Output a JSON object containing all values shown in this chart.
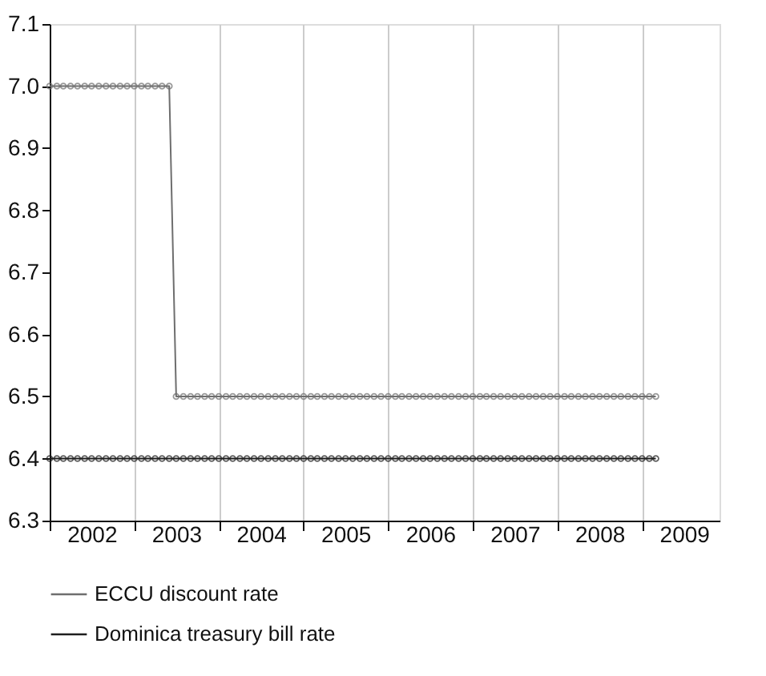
{
  "chart_data": {
    "type": "line",
    "x": [
      "2002-01",
      "2002-02",
      "2002-03",
      "2002-04",
      "2002-05",
      "2002-06",
      "2002-07",
      "2002-08",
      "2002-09",
      "2002-10",
      "2002-11",
      "2002-12",
      "2003-01",
      "2003-02",
      "2003-03",
      "2003-04",
      "2003-05",
      "2003-06",
      "2003-07",
      "2003-08",
      "2003-09",
      "2003-10",
      "2003-11",
      "2003-12",
      "2004-01",
      "2004-02",
      "2004-03",
      "2004-04",
      "2004-05",
      "2004-06",
      "2004-07",
      "2004-08",
      "2004-09",
      "2004-10",
      "2004-11",
      "2004-12",
      "2005-01",
      "2005-02",
      "2005-03",
      "2005-04",
      "2005-05",
      "2005-06",
      "2005-07",
      "2005-08",
      "2005-09",
      "2005-10",
      "2005-11",
      "2005-12",
      "2006-01",
      "2006-02",
      "2006-03",
      "2006-04",
      "2006-05",
      "2006-06",
      "2006-07",
      "2006-08",
      "2006-09",
      "2006-10",
      "2006-11",
      "2006-12",
      "2007-01",
      "2007-02",
      "2007-03",
      "2007-04",
      "2007-05",
      "2007-06",
      "2007-07",
      "2007-08",
      "2007-09",
      "2007-10",
      "2007-11",
      "2007-12",
      "2008-01",
      "2008-02",
      "2008-03",
      "2008-04",
      "2008-05",
      "2008-06",
      "2008-07",
      "2008-08",
      "2008-09",
      "2008-10",
      "2008-11",
      "2008-12",
      "2009-01",
      "2009-02",
      "2009-03"
    ],
    "series": [
      {
        "name": "ECCU discount rate",
        "color": "#6e6e6e",
        "values": [
          7.0,
          7.0,
          7.0,
          7.0,
          7.0,
          7.0,
          7.0,
          7.0,
          7.0,
          7.0,
          7.0,
          7.0,
          7.0,
          7.0,
          7.0,
          7.0,
          7.0,
          7.0,
          6.5,
          6.5,
          6.5,
          6.5,
          6.5,
          6.5,
          6.5,
          6.5,
          6.5,
          6.5,
          6.5,
          6.5,
          6.5,
          6.5,
          6.5,
          6.5,
          6.5,
          6.5,
          6.5,
          6.5,
          6.5,
          6.5,
          6.5,
          6.5,
          6.5,
          6.5,
          6.5,
          6.5,
          6.5,
          6.5,
          6.5,
          6.5,
          6.5,
          6.5,
          6.5,
          6.5,
          6.5,
          6.5,
          6.5,
          6.5,
          6.5,
          6.5,
          6.5,
          6.5,
          6.5,
          6.5,
          6.5,
          6.5,
          6.5,
          6.5,
          6.5,
          6.5,
          6.5,
          6.5,
          6.5,
          6.5,
          6.5,
          6.5,
          6.5,
          6.5,
          6.5,
          6.5,
          6.5,
          6.5,
          6.5,
          6.5,
          6.5,
          6.5,
          6.5
        ]
      },
      {
        "name": "Dominica treasury bill rate",
        "color": "#1e1e1e",
        "values": [
          6.4,
          6.4,
          6.4,
          6.4,
          6.4,
          6.4,
          6.4,
          6.4,
          6.4,
          6.4,
          6.4,
          6.4,
          6.4,
          6.4,
          6.4,
          6.4,
          6.4,
          6.4,
          6.4,
          6.4,
          6.4,
          6.4,
          6.4,
          6.4,
          6.4,
          6.4,
          6.4,
          6.4,
          6.4,
          6.4,
          6.4,
          6.4,
          6.4,
          6.4,
          6.4,
          6.4,
          6.4,
          6.4,
          6.4,
          6.4,
          6.4,
          6.4,
          6.4,
          6.4,
          6.4,
          6.4,
          6.4,
          6.4,
          6.4,
          6.4,
          6.4,
          6.4,
          6.4,
          6.4,
          6.4,
          6.4,
          6.4,
          6.4,
          6.4,
          6.4,
          6.4,
          6.4,
          6.4,
          6.4,
          6.4,
          6.4,
          6.4,
          6.4,
          6.4,
          6.4,
          6.4,
          6.4,
          6.4,
          6.4,
          6.4,
          6.4,
          6.4,
          6.4,
          6.4,
          6.4,
          6.4,
          6.4,
          6.4,
          6.4,
          6.4,
          6.4,
          6.4
        ]
      }
    ],
    "xlim": [
      "2002-01",
      "2009-12"
    ],
    "xticks": [
      {
        "value": "2002-01",
        "label": null
      },
      {
        "value": "2002-07",
        "label": "2002"
      },
      {
        "value": "2003-01",
        "label": null
      },
      {
        "value": "2003-07",
        "label": "2003"
      },
      {
        "value": "2004-01",
        "label": null
      },
      {
        "value": "2004-07",
        "label": "2004"
      },
      {
        "value": "2005-01",
        "label": null
      },
      {
        "value": "2005-07",
        "label": "2005"
      },
      {
        "value": "2006-01",
        "label": null
      },
      {
        "value": "2006-07",
        "label": "2006"
      },
      {
        "value": "2007-01",
        "label": null
      },
      {
        "value": "2007-07",
        "label": "2007"
      },
      {
        "value": "2008-01",
        "label": null
      },
      {
        "value": "2008-07",
        "label": "2008"
      },
      {
        "value": "2009-01",
        "label": null
      },
      {
        "value": "2009-07",
        "label": "2009"
      }
    ],
    "ylim": [
      6.3,
      7.1
    ],
    "yticks": [
      6.3,
      6.4,
      6.5,
      6.6,
      6.7,
      6.8,
      6.9,
      {
        "value": 7,
        "label": "7.0"
      },
      7.1
    ],
    "grid": "x",
    "legend": "bottom",
    "marker": "circle",
    "line_style": "solid"
  }
}
